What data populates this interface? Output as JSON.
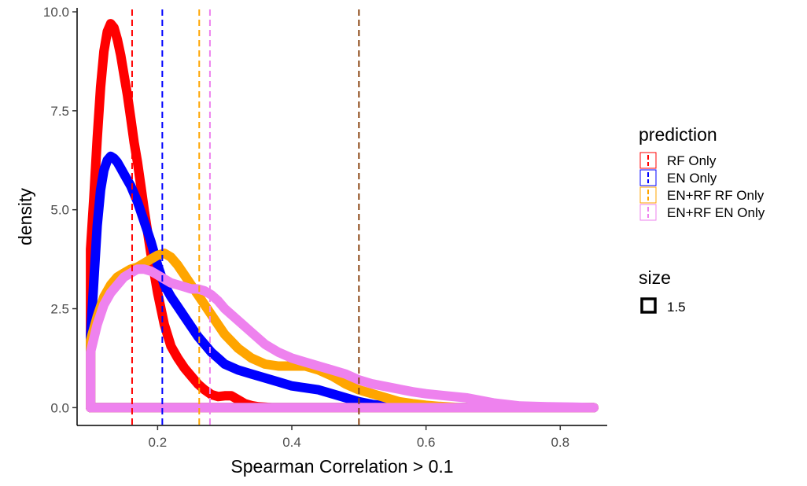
{
  "chart_data": {
    "type": "line",
    "subtype": "density",
    "xlabel": "Spearman Correlation > 0.1",
    "ylabel": "density",
    "xlim": [
      0.08,
      0.87
    ],
    "ylim": [
      -0.45,
      10.1
    ],
    "x_ticks": [
      0.2,
      0.4,
      0.6,
      0.8
    ],
    "x_tick_labels": [
      "0.2",
      "0.4",
      "0.6",
      "0.8"
    ],
    "y_ticks": [
      0,
      2.5,
      5,
      7.5,
      10
    ],
    "y_tick_labels": [
      "0.0",
      "2.5",
      "5.0",
      "7.5",
      "10.0"
    ],
    "grid": false,
    "legend": {
      "title": "prediction",
      "placement": "right"
    },
    "size_legend": {
      "title": "size",
      "entries": [
        "1.5"
      ]
    },
    "series": [
      {
        "name": "RF Only",
        "color": "#ff0000",
        "x": [
          0.1,
          0.105,
          0.11,
          0.115,
          0.12,
          0.125,
          0.13,
          0.135,
          0.14,
          0.145,
          0.15,
          0.155,
          0.16,
          0.165,
          0.17,
          0.175,
          0.18,
          0.19,
          0.2,
          0.21,
          0.22,
          0.23,
          0.24,
          0.25,
          0.26,
          0.27,
          0.28,
          0.29,
          0.3,
          0.31,
          0.32,
          0.33,
          0.34,
          0.35,
          0.36,
          0.37,
          0.38
        ],
        "values": [
          4.0,
          5.3,
          6.8,
          8.1,
          9.0,
          9.5,
          9.7,
          9.6,
          9.3,
          8.9,
          8.4,
          7.9,
          7.3,
          6.7,
          6.2,
          5.6,
          5.0,
          3.9,
          2.9,
          2.1,
          1.55,
          1.25,
          1.0,
          0.8,
          0.6,
          0.45,
          0.33,
          0.28,
          0.3,
          0.3,
          0.2,
          0.1,
          0.05,
          0.02,
          0.01,
          0.0,
          0.0
        ],
        "mean_line": 0.162
      },
      {
        "name": "EN Only",
        "color": "#0000ff",
        "x": [
          0.1,
          0.105,
          0.11,
          0.115,
          0.12,
          0.125,
          0.13,
          0.135,
          0.14,
          0.145,
          0.15,
          0.16,
          0.17,
          0.18,
          0.19,
          0.2,
          0.21,
          0.22,
          0.23,
          0.24,
          0.25,
          0.26,
          0.27,
          0.28,
          0.29,
          0.3,
          0.32,
          0.34,
          0.36,
          0.38,
          0.4,
          0.42,
          0.44,
          0.46,
          0.48,
          0.5,
          0.52,
          0.55,
          0.6
        ],
        "values": [
          1.8,
          3.2,
          4.6,
          5.5,
          6.0,
          6.25,
          6.35,
          6.3,
          6.2,
          6.05,
          5.9,
          5.6,
          5.2,
          4.7,
          4.2,
          3.6,
          3.1,
          2.8,
          2.55,
          2.3,
          2.05,
          1.8,
          1.6,
          1.4,
          1.25,
          1.1,
          0.95,
          0.85,
          0.75,
          0.65,
          0.55,
          0.5,
          0.45,
          0.35,
          0.25,
          0.15,
          0.08,
          0.03,
          0.0
        ],
        "mean_line": 0.207
      },
      {
        "name": "EN+RF RF Only",
        "color": "#ffa500",
        "x": [
          0.1,
          0.11,
          0.12,
          0.13,
          0.14,
          0.15,
          0.16,
          0.17,
          0.18,
          0.19,
          0.2,
          0.21,
          0.22,
          0.23,
          0.24,
          0.25,
          0.26,
          0.27,
          0.28,
          0.29,
          0.3,
          0.32,
          0.34,
          0.36,
          0.38,
          0.4,
          0.42,
          0.44,
          0.46,
          0.48,
          0.5,
          0.52,
          0.54,
          0.56,
          0.58,
          0.6,
          0.62,
          0.65
        ],
        "values": [
          1.7,
          2.3,
          2.8,
          3.1,
          3.3,
          3.4,
          3.5,
          3.55,
          3.65,
          3.75,
          3.85,
          3.9,
          3.8,
          3.6,
          3.35,
          3.1,
          2.85,
          2.6,
          2.35,
          2.1,
          1.85,
          1.5,
          1.25,
          1.1,
          1.05,
          1.05,
          1.05,
          0.95,
          0.8,
          0.6,
          0.45,
          0.35,
          0.25,
          0.15,
          0.1,
          0.06,
          0.03,
          0.0
        ],
        "mean_line": 0.262
      },
      {
        "name": "EN+RF EN Only",
        "color": "#ee82ee",
        "x": [
          0.1,
          0.11,
          0.12,
          0.13,
          0.14,
          0.15,
          0.16,
          0.17,
          0.18,
          0.19,
          0.2,
          0.21,
          0.22,
          0.23,
          0.24,
          0.25,
          0.26,
          0.27,
          0.28,
          0.29,
          0.3,
          0.32,
          0.34,
          0.36,
          0.38,
          0.4,
          0.42,
          0.44,
          0.46,
          0.48,
          0.5,
          0.52,
          0.55,
          0.58,
          0.6,
          0.63,
          0.66,
          0.7,
          0.74,
          0.78,
          0.82,
          0.85
        ],
        "values": [
          1.4,
          2.1,
          2.6,
          2.9,
          3.1,
          3.3,
          3.4,
          3.5,
          3.5,
          3.45,
          3.35,
          3.25,
          3.15,
          3.1,
          3.05,
          3.0,
          3.0,
          2.95,
          2.85,
          2.7,
          2.5,
          2.2,
          1.9,
          1.6,
          1.4,
          1.25,
          1.15,
          1.05,
          0.95,
          0.85,
          0.7,
          0.6,
          0.5,
          0.4,
          0.35,
          0.3,
          0.25,
          0.12,
          0.04,
          0.02,
          0.01,
          0.0
        ],
        "mean_line": 0.278
      }
    ],
    "extra_vlines": [
      {
        "x": 0.5,
        "color": "#8b4513"
      }
    ]
  }
}
